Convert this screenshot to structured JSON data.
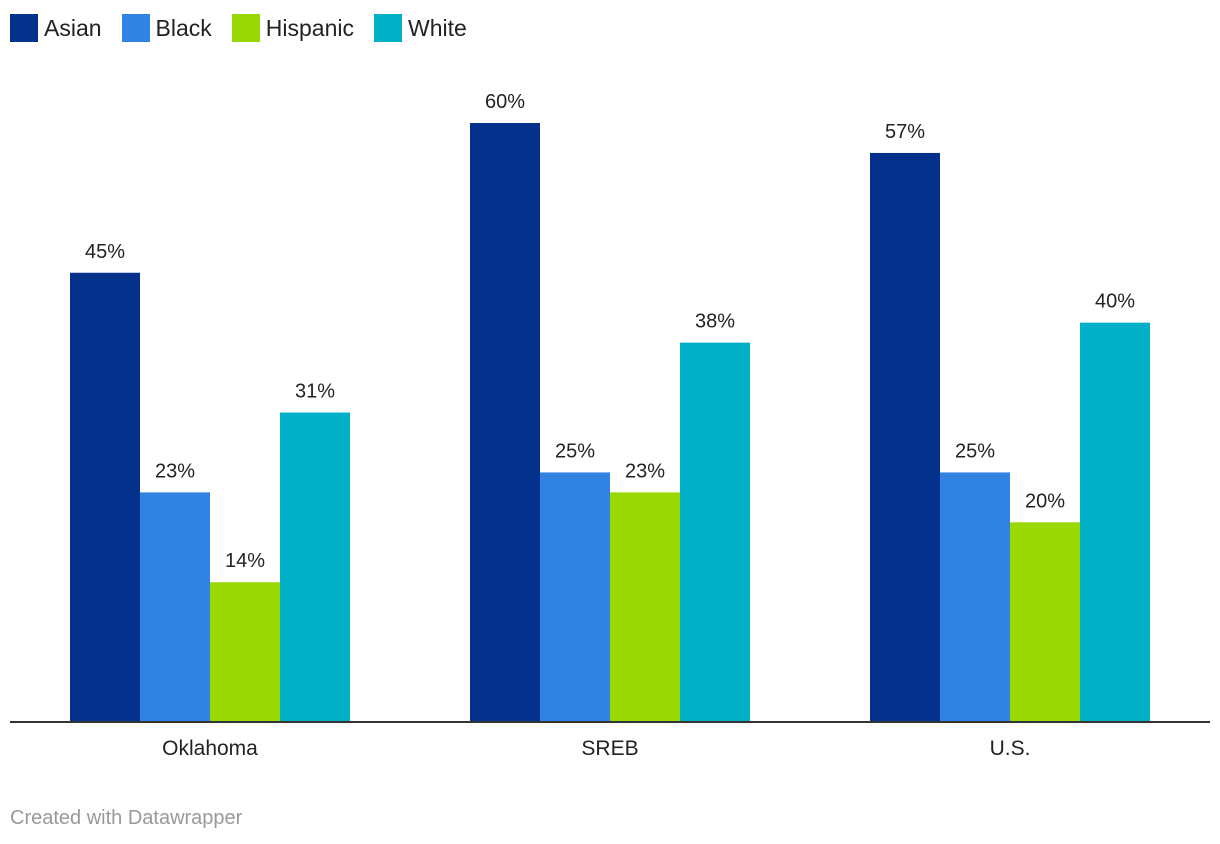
{
  "chart_data": {
    "type": "bar",
    "title": "",
    "xlabel": "",
    "ylabel": "",
    "ylim": [
      0,
      60
    ],
    "grid": false,
    "legend_position": "top-left",
    "value_suffix": "%",
    "categories": [
      "Oklahoma",
      "SREB",
      "U.S."
    ],
    "series": [
      {
        "name": "Asian",
        "color": "#03318C",
        "values": [
          45,
          60,
          57
        ]
      },
      {
        "name": "Black",
        "color": "#3183E3",
        "values": [
          23,
          25,
          25
        ]
      },
      {
        "name": "Hispanic",
        "color": "#99D802",
        "values": [
          14,
          23,
          20
        ]
      },
      {
        "name": "White",
        "color": "#00AFC8",
        "values": [
          31,
          38,
          40
        ]
      }
    ]
  },
  "footer": {
    "credit": "Created with Datawrapper"
  }
}
